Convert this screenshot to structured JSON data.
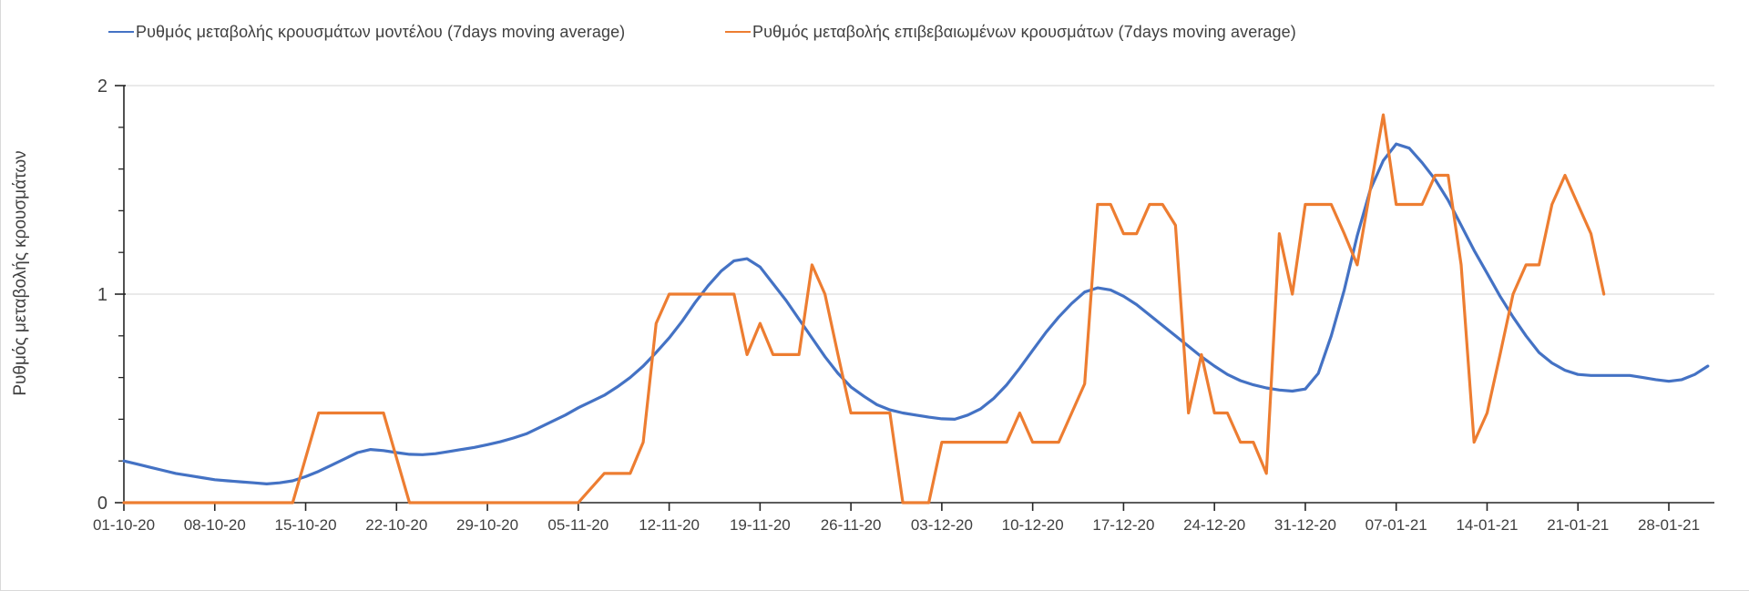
{
  "page": {
    "background": "#ffffff"
  },
  "legend": [
    {
      "label": "Ρυθμός μεταβολής κρουσμάτων μοντέλου (7days moving average)",
      "color": "#4472C4"
    },
    {
      "label": "Ρυθμός μεταβολής επιβεβαιωμένων κρουσμάτων (7days moving average)",
      "color": "#ED7D31"
    }
  ],
  "y_axis": {
    "title": "Ρυθμός μεταβολής κρουσμάτων",
    "tick_labels": [
      "0",
      "1",
      "2"
    ],
    "tick_values": [
      0,
      1,
      2
    ],
    "minor_tick_step": 0.2,
    "range": [
      0,
      2
    ]
  },
  "x_axis": {
    "tick_labels": [
      "01-10-20",
      "08-10-20",
      "15-10-20",
      "22-10-20",
      "29-10-20",
      "05-11-20",
      "12-11-20",
      "19-11-20",
      "26-11-20",
      "03-12-20",
      "10-12-20",
      "17-12-20",
      "24-12-20",
      "31-12-20",
      "07-01-21",
      "14-01-21",
      "21-01-21",
      "28-01-21"
    ],
    "tick_interval_days": 7
  },
  "chart_data": {
    "type": "line",
    "title": "",
    "xlabel": "",
    "ylabel": "Ρυθμός μεταβολής κρουσμάτων",
    "x_unit": "days since 01-10-2020 (daily values, 7-day moving average)",
    "ylim": [
      0,
      2
    ],
    "gridlines": [
      1,
      2
    ],
    "legend_position": "top",
    "colors": {
      "grid": "#e3e3e3",
      "axis": "#262626",
      "text": "#404040"
    },
    "series": [
      {
        "id": "model",
        "name": "Ρυθμός μεταβολής κρουσμάτων μοντέλου (7days moving average)",
        "color": "#4472C4",
        "points": [
          [
            0,
            0.2
          ],
          [
            1,
            0.185
          ],
          [
            2,
            0.17
          ],
          [
            3,
            0.155
          ],
          [
            4,
            0.14
          ],
          [
            5,
            0.13
          ],
          [
            6,
            0.12
          ],
          [
            7,
            0.11
          ],
          [
            8,
            0.105
          ],
          [
            9,
            0.1
          ],
          [
            10,
            0.095
          ],
          [
            11,
            0.09
          ],
          [
            12,
            0.095
          ],
          [
            13,
            0.105
          ],
          [
            14,
            0.125
          ],
          [
            15,
            0.15
          ],
          [
            16,
            0.18
          ],
          [
            17,
            0.21
          ],
          [
            18,
            0.24
          ],
          [
            19,
            0.255
          ],
          [
            20,
            0.25
          ],
          [
            21,
            0.24
          ],
          [
            22,
            0.232
          ],
          [
            23,
            0.23
          ],
          [
            24,
            0.235
          ],
          [
            25,
            0.245
          ],
          [
            26,
            0.255
          ],
          [
            27,
            0.265
          ],
          [
            28,
            0.278
          ],
          [
            29,
            0.292
          ],
          [
            30,
            0.31
          ],
          [
            31,
            0.33
          ],
          [
            32,
            0.36
          ],
          [
            33,
            0.39
          ],
          [
            34,
            0.42
          ],
          [
            35,
            0.455
          ],
          [
            36,
            0.485
          ],
          [
            37,
            0.515
          ],
          [
            38,
            0.555
          ],
          [
            39,
            0.6
          ],
          [
            40,
            0.655
          ],
          [
            41,
            0.72
          ],
          [
            42,
            0.79
          ],
          [
            43,
            0.87
          ],
          [
            44,
            0.96
          ],
          [
            45,
            1.04
          ],
          [
            46,
            1.11
          ],
          [
            47,
            1.16
          ],
          [
            48,
            1.17
          ],
          [
            49,
            1.13
          ],
          [
            50,
            1.05
          ],
          [
            51,
            0.97
          ],
          [
            52,
            0.88
          ],
          [
            53,
            0.79
          ],
          [
            54,
            0.7
          ],
          [
            55,
            0.62
          ],
          [
            56,
            0.555
          ],
          [
            57,
            0.51
          ],
          [
            58,
            0.47
          ],
          [
            59,
            0.445
          ],
          [
            60,
            0.43
          ],
          [
            61,
            0.42
          ],
          [
            62,
            0.41
          ],
          [
            63,
            0.402
          ],
          [
            64,
            0.4
          ],
          [
            65,
            0.42
          ],
          [
            66,
            0.45
          ],
          [
            67,
            0.5
          ],
          [
            68,
            0.565
          ],
          [
            69,
            0.645
          ],
          [
            70,
            0.73
          ],
          [
            71,
            0.815
          ],
          [
            72,
            0.89
          ],
          [
            73,
            0.955
          ],
          [
            74,
            1.01
          ],
          [
            75,
            1.03
          ],
          [
            76,
            1.02
          ],
          [
            77,
            0.99
          ],
          [
            78,
            0.95
          ],
          [
            79,
            0.9
          ],
          [
            80,
            0.85
          ],
          [
            81,
            0.8
          ],
          [
            82,
            0.75
          ],
          [
            83,
            0.7
          ],
          [
            84,
            0.655
          ],
          [
            85,
            0.615
          ],
          [
            86,
            0.585
          ],
          [
            87,
            0.565
          ],
          [
            88,
            0.55
          ],
          [
            89,
            0.54
          ],
          [
            90,
            0.535
          ],
          [
            91,
            0.545
          ],
          [
            92,
            0.62
          ],
          [
            93,
            0.8
          ],
          [
            94,
            1.02
          ],
          [
            95,
            1.28
          ],
          [
            96,
            1.5
          ],
          [
            97,
            1.64
          ],
          [
            98,
            1.72
          ],
          [
            99,
            1.7
          ],
          [
            100,
            1.63
          ],
          [
            101,
            1.55
          ],
          [
            102,
            1.45
          ],
          [
            103,
            1.33
          ],
          [
            104,
            1.21
          ],
          [
            105,
            1.1
          ],
          [
            106,
            0.99
          ],
          [
            107,
            0.89
          ],
          [
            108,
            0.8
          ],
          [
            109,
            0.72
          ],
          [
            110,
            0.67
          ],
          [
            111,
            0.635
          ],
          [
            112,
            0.615
          ],
          [
            113,
            0.61
          ],
          [
            114,
            0.61
          ],
          [
            115,
            0.61
          ],
          [
            116,
            0.61
          ],
          [
            117,
            0.6
          ],
          [
            118,
            0.59
          ],
          [
            119,
            0.582
          ],
          [
            120,
            0.59
          ],
          [
            121,
            0.615
          ],
          [
            122,
            0.655
          ]
        ]
      },
      {
        "id": "confirmed",
        "name": "Ρυθμός μεταβολής επιβεβαιωμένων κρουσμάτων (7days moving average)",
        "color": "#ED7D31",
        "points": [
          [
            0,
            0
          ],
          [
            13,
            0
          ],
          [
            15,
            0.43
          ],
          [
            20,
            0.43
          ],
          [
            22,
            0
          ],
          [
            35,
            0
          ],
          [
            37,
            0.14
          ],
          [
            39,
            0.14
          ],
          [
            40,
            0.29
          ],
          [
            41,
            0.86
          ],
          [
            42,
            1.0
          ],
          [
            47,
            1.0
          ],
          [
            48,
            0.71
          ],
          [
            49,
            0.86
          ],
          [
            50,
            0.71
          ],
          [
            52,
            0.71
          ],
          [
            53,
            1.14
          ],
          [
            54,
            1.0
          ],
          [
            55,
            0.71
          ],
          [
            56,
            0.43
          ],
          [
            59,
            0.43
          ],
          [
            60,
            0
          ],
          [
            62,
            0
          ],
          [
            63,
            0.29
          ],
          [
            68,
            0.29
          ],
          [
            69,
            0.43
          ],
          [
            70,
            0.29
          ],
          [
            72,
            0.29
          ],
          [
            74,
            0.57
          ],
          [
            75,
            1.43
          ],
          [
            76,
            1.43
          ],
          [
            77,
            1.29
          ],
          [
            78,
            1.29
          ],
          [
            79,
            1.43
          ],
          [
            80,
            1.43
          ],
          [
            81,
            1.33
          ],
          [
            82,
            0.43
          ],
          [
            83,
            0.71
          ],
          [
            84,
            0.43
          ],
          [
            85,
            0.43
          ],
          [
            86,
            0.29
          ],
          [
            87,
            0.29
          ],
          [
            88,
            0.14
          ],
          [
            89,
            1.29
          ],
          [
            90,
            1.0
          ],
          [
            91,
            1.43
          ],
          [
            93,
            1.43
          ],
          [
            94,
            1.29
          ],
          [
            95,
            1.14
          ],
          [
            97,
            1.86
          ],
          [
            98,
            1.43
          ],
          [
            100,
            1.43
          ],
          [
            101,
            1.57
          ],
          [
            102,
            1.57
          ],
          [
            103,
            1.14
          ],
          [
            104,
            0.29
          ],
          [
            105,
            0.43
          ],
          [
            106,
            0.71
          ],
          [
            107,
            1.0
          ],
          [
            108,
            1.14
          ],
          [
            109,
            1.14
          ],
          [
            110,
            1.43
          ],
          [
            111,
            1.57
          ],
          [
            112,
            1.43
          ],
          [
            113,
            1.29
          ],
          [
            114,
            1.0
          ]
        ]
      }
    ]
  }
}
